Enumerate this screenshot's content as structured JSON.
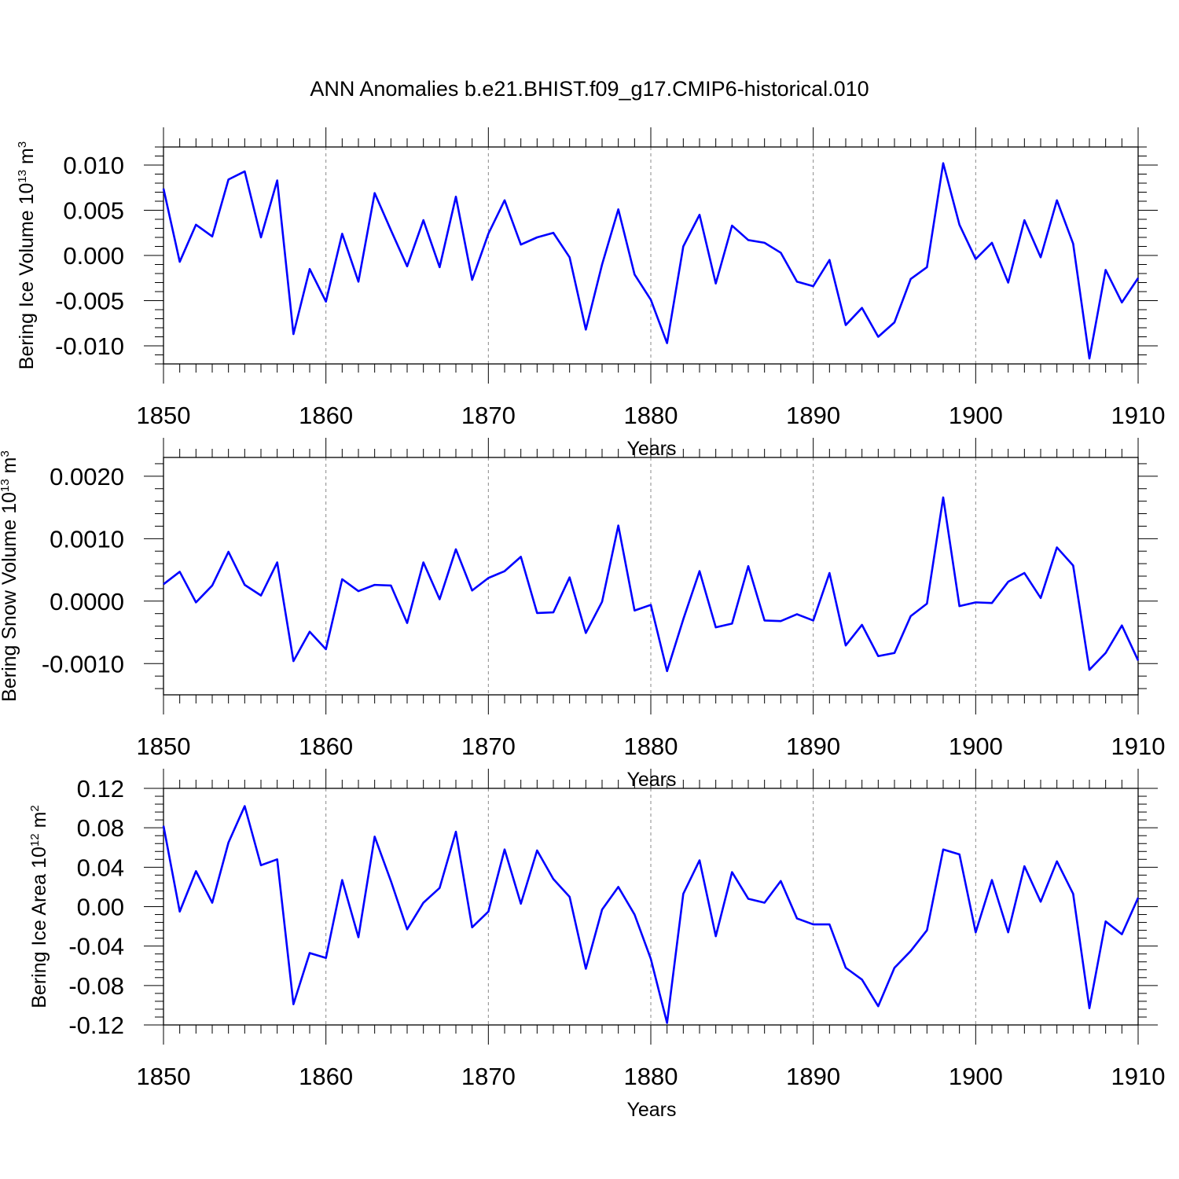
{
  "figure_title": "ANN Anomalies b.e21.BHIST.f09_g17.CMIP6-historical.010",
  "colors": {
    "line": "#0000ff",
    "axes": "#000000",
    "grid": "#888888"
  },
  "chart_data": [
    {
      "type": "line",
      "title": "ANN Anomalies b.e21.BHIST.f09_g17.CMIP6-historical.010",
      "xlabel": "Years",
      "ylabel": {
        "text": "Bering Ice Volume 10",
        "exponent": "13",
        "unit": " m",
        "unit_exponent": "3"
      },
      "xlim": [
        1850,
        1910
      ],
      "ylim": [
        -0.012,
        0.012
      ],
      "xticks": [
        1850,
        1860,
        1870,
        1880,
        1890,
        1900,
        1910
      ],
      "xtick_labels": [
        "1850",
        "1860",
        "1870",
        "1880",
        "1890",
        "1900",
        "1910"
      ],
      "yticks": [
        0.01,
        0.005,
        0.0,
        -0.005,
        -0.01
      ],
      "ytick_labels": [
        "0.010",
        "0.005",
        "0.000",
        "-0.005",
        "-0.010"
      ],
      "grid": "vertical dashed at major x ticks",
      "series": [
        {
          "name": "Bering Ice Volume",
          "x": [
            1850,
            1851,
            1852,
            1853,
            1854,
            1855,
            1856,
            1857,
            1858,
            1859,
            1860,
            1861,
            1862,
            1863,
            1864,
            1865,
            1866,
            1867,
            1868,
            1869,
            1870,
            1871,
            1872,
            1873,
            1874,
            1875,
            1876,
            1877,
            1878,
            1879,
            1880,
            1881,
            1882,
            1883,
            1884,
            1885,
            1886,
            1887,
            1888,
            1889,
            1890,
            1891,
            1892,
            1893,
            1894,
            1895,
            1896,
            1897,
            1898,
            1899,
            1900,
            1901,
            1902,
            1903,
            1904,
            1905,
            1906,
            1907,
            1908,
            1909,
            1910
          ],
          "values": [
            0.0074,
            -0.0007,
            0.0034,
            0.0021,
            0.0084,
            0.0093,
            0.002,
            0.0083,
            -0.0087,
            -0.0015,
            -0.0051,
            0.0024,
            -0.0029,
            0.0069,
            0.0028,
            -0.0012,
            0.0039,
            -0.0013,
            0.0065,
            -0.0027,
            0.0024,
            0.0061,
            0.0012,
            0.002,
            0.0025,
            -0.0002,
            -0.0082,
            -0.001,
            0.0051,
            -0.0021,
            -0.0049,
            -0.0097,
            0.001,
            0.0045,
            -0.0031,
            0.0033,
            0.0017,
            0.0014,
            0.0003,
            -0.0029,
            -0.0034,
            -0.0005,
            -0.0077,
            -0.0058,
            -0.009,
            -0.0074,
            -0.0026,
            -0.0013,
            0.0102,
            0.0034,
            -0.0004,
            0.0014,
            -0.003,
            0.0039,
            -0.0002,
            0.0061,
            0.0013,
            -0.0114,
            -0.0016,
            -0.0052,
            -0.0025
          ]
        }
      ]
    },
    {
      "type": "line",
      "xlabel": "Years",
      "ylabel": {
        "text": "Bering Snow Volume 10",
        "exponent": "13",
        "unit": " m",
        "unit_exponent": "3"
      },
      "xlim": [
        1850,
        1910
      ],
      "ylim": [
        -0.0015,
        0.0023
      ],
      "xticks": [
        1850,
        1860,
        1870,
        1880,
        1890,
        1900,
        1910
      ],
      "xtick_labels": [
        "1850",
        "1860",
        "1870",
        "1880",
        "1890",
        "1900",
        "1910"
      ],
      "yticks": [
        0.002,
        0.001,
        0.0,
        -0.001
      ],
      "ytick_labels": [
        "0.0020",
        "0.0010",
        "0.0000",
        "-0.0010"
      ],
      "grid": "vertical dashed at major x ticks",
      "series": [
        {
          "name": "Bering Snow Volume",
          "x": [
            1850,
            1851,
            1852,
            1853,
            1854,
            1855,
            1856,
            1857,
            1858,
            1859,
            1860,
            1861,
            1862,
            1863,
            1864,
            1865,
            1866,
            1867,
            1868,
            1869,
            1870,
            1871,
            1872,
            1873,
            1874,
            1875,
            1876,
            1877,
            1878,
            1879,
            1880,
            1881,
            1882,
            1883,
            1884,
            1885,
            1886,
            1887,
            1888,
            1889,
            1890,
            1891,
            1892,
            1893,
            1894,
            1895,
            1896,
            1897,
            1898,
            1899,
            1900,
            1901,
            1902,
            1903,
            1904,
            1905,
            1906,
            1907,
            1908,
            1909,
            1910
          ],
          "values": [
            0.00027,
            0.00047,
            -2e-05,
            0.00025,
            0.00079,
            0.00026,
            9e-05,
            0.00062,
            -0.00096,
            -0.00049,
            -0.00077,
            0.00035,
            0.00016,
            0.00026,
            0.00025,
            -0.00035,
            0.00062,
            3e-05,
            0.00083,
            0.00017,
            0.00037,
            0.00048,
            0.00071,
            -0.00019,
            -0.00018,
            0.00038,
            -0.00051,
            -1e-05,
            0.00121,
            -0.00015,
            -6e-05,
            -0.00112,
            -0.00029,
            0.00048,
            -0.00042,
            -0.00036,
            0.00056,
            -0.00031,
            -0.00032,
            -0.00021,
            -0.00031,
            0.00045,
            -0.00071,
            -0.00038,
            -0.00088,
            -0.00083,
            -0.00024,
            -4e-05,
            0.00166,
            -8e-05,
            -2e-05,
            -3e-05,
            0.00031,
            0.00045,
            5e-05,
            0.00086,
            0.00057,
            -0.0011,
            -0.00083,
            -0.00039,
            -0.00095
          ]
        }
      ]
    },
    {
      "type": "line",
      "xlabel": "Years",
      "ylabel": {
        "text": "Bering Ice Area 10",
        "exponent": "12",
        "unit": " m",
        "unit_exponent": "2"
      },
      "xlim": [
        1850,
        1910
      ],
      "ylim": [
        -0.12,
        0.12
      ],
      "xticks": [
        1850,
        1860,
        1870,
        1880,
        1890,
        1900,
        1910
      ],
      "xtick_labels": [
        "1850",
        "1860",
        "1870",
        "1880",
        "1890",
        "1900",
        "1910"
      ],
      "yticks": [
        0.12,
        0.08,
        0.04,
        0.0,
        -0.04,
        -0.08,
        -0.12
      ],
      "ytick_labels": [
        "0.12",
        "0.08",
        "0.04",
        "0.00",
        "-0.04",
        "-0.08",
        "-0.12"
      ],
      "grid": "vertical dashed at major x ticks",
      "series": [
        {
          "name": "Bering Ice Area",
          "x": [
            1850,
            1851,
            1852,
            1853,
            1854,
            1855,
            1856,
            1857,
            1858,
            1859,
            1860,
            1861,
            1862,
            1863,
            1864,
            1865,
            1866,
            1867,
            1868,
            1869,
            1870,
            1871,
            1872,
            1873,
            1874,
            1875,
            1876,
            1877,
            1878,
            1879,
            1880,
            1881,
            1882,
            1883,
            1884,
            1885,
            1886,
            1887,
            1888,
            1889,
            1890,
            1891,
            1892,
            1893,
            1894,
            1895,
            1896,
            1897,
            1898,
            1899,
            1900,
            1901,
            1902,
            1903,
            1904,
            1905,
            1906,
            1907,
            1908,
            1909,
            1910
          ],
          "values": [
            0.082,
            -0.005,
            0.036,
            0.004,
            0.065,
            0.102,
            0.042,
            0.048,
            -0.099,
            -0.047,
            -0.052,
            0.027,
            -0.031,
            0.071,
            0.026,
            -0.023,
            0.004,
            0.019,
            0.076,
            -0.021,
            -0.005,
            0.058,
            0.003,
            0.057,
            0.028,
            0.01,
            -0.063,
            -0.003,
            0.02,
            -0.008,
            -0.053,
            -0.118,
            0.013,
            0.047,
            -0.03,
            0.035,
            0.008,
            0.004,
            0.026,
            -0.012,
            -0.018,
            -0.018,
            -0.062,
            -0.074,
            -0.101,
            -0.062,
            -0.045,
            -0.024,
            0.058,
            0.053,
            -0.026,
            0.027,
            -0.026,
            0.041,
            0.005,
            0.046,
            0.013,
            -0.103,
            -0.015,
            -0.028,
            0.009
          ]
        }
      ]
    }
  ]
}
